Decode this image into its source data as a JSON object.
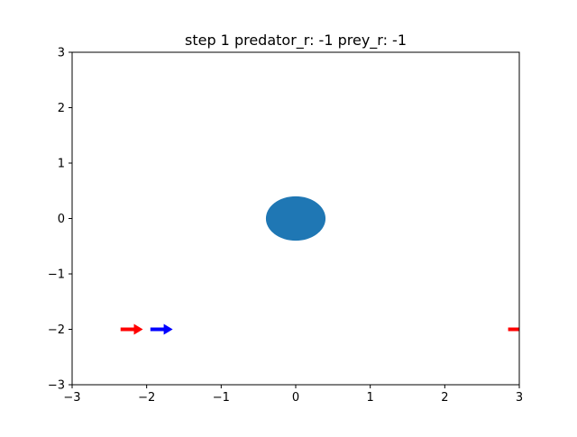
{
  "chart_data": {
    "type": "scatter",
    "title": "step 1 predator_r: -1 prey_r: -1",
    "xlabel": "",
    "ylabel": "",
    "xlim": [
      -3,
      3
    ],
    "ylim": [
      -3,
      3
    ],
    "grid": false,
    "x_ticks": [
      -3,
      -2,
      -1,
      0,
      1,
      2,
      3
    ],
    "y_ticks": [
      -3,
      -2,
      -1,
      0,
      1,
      2,
      3
    ],
    "x_tick_labels": [
      "−3",
      "−2",
      "−1",
      "0",
      "1",
      "2",
      "3"
    ],
    "y_tick_labels": [
      "−3",
      "−2",
      "−1",
      "0",
      "1",
      "2",
      "3"
    ],
    "obstacle": {
      "x": 0,
      "y": 0,
      "radius": 0.4,
      "color": "#1f77b4"
    },
    "agents": [
      {
        "x": -2.35,
        "y": -2,
        "dx": 0.3,
        "dy": 0,
        "color": "#ff0000"
      },
      {
        "x": -1.95,
        "y": -2,
        "dx": 0.3,
        "dy": 0,
        "color": "#0000ff"
      },
      {
        "x": 2.85,
        "y": -2,
        "dx": 0.3,
        "dy": 0,
        "color": "#ff0000"
      }
    ]
  }
}
